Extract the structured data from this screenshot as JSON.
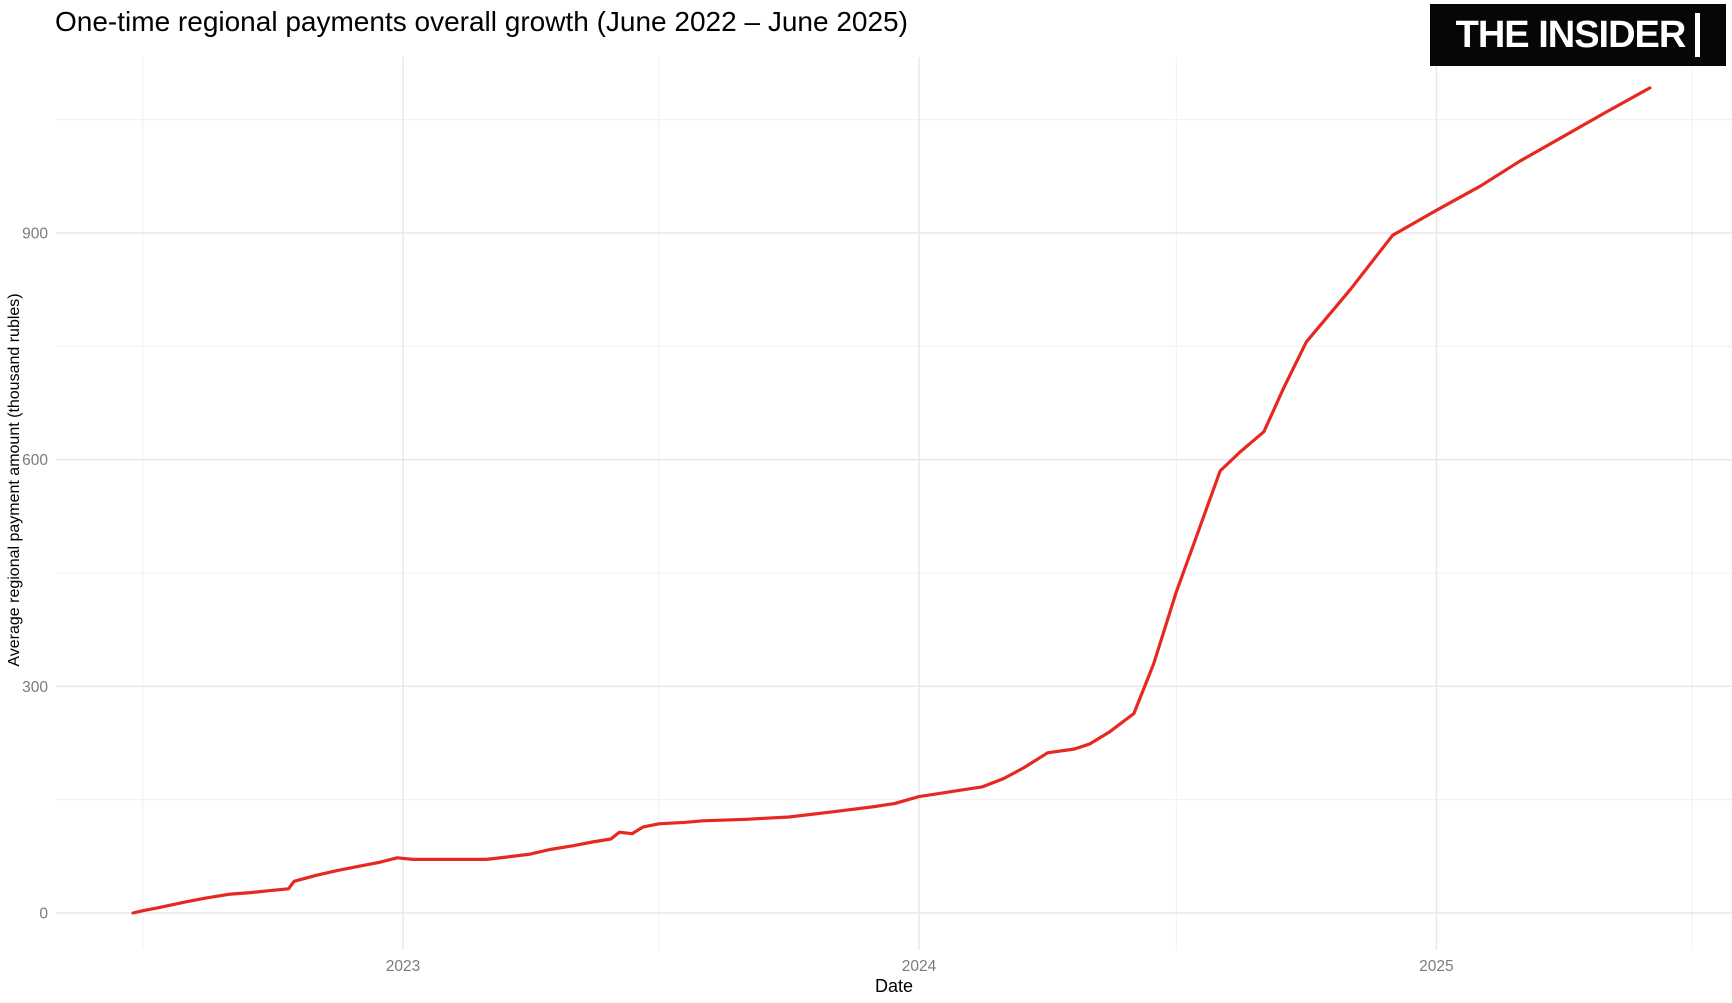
{
  "logo": {
    "text": "THE INSIDER"
  },
  "chart_data": {
    "type": "line",
    "title": "One-time regional payments overall growth (June 2022 – June 2025)",
    "xlabel": "Date",
    "ylabel": "Average regional payment amount (thousand rubles)",
    "x_tick_labels": [
      "2023",
      "2024",
      "2025"
    ],
    "x_major_dates": [
      "2023-01-01",
      "2024-01-01",
      "2025-01-01"
    ],
    "x_minor_dates": [
      "2022-07-01",
      "2023-07-01",
      "2024-07-01",
      "2025-07-01"
    ],
    "y_tick_labels": [
      "0",
      "300",
      "600",
      "900"
    ],
    "y_major": [
      0,
      300,
      600,
      900
    ],
    "y_minor": [
      150,
      450,
      750,
      1050
    ],
    "x_range": [
      "2022-06-24",
      "2025-06-01"
    ],
    "ylim": [
      0,
      1100
    ],
    "grid": "on",
    "legend": "none",
    "line_color": "#e62820",
    "tick_label_color": "#7b7b7b",
    "series": [
      {
        "points": [
          [
            "2022-06-24",
            0
          ],
          [
            "2022-07-01",
            3
          ],
          [
            "2022-07-12",
            7
          ],
          [
            "2022-07-22",
            11
          ],
          [
            "2022-08-01",
            15
          ],
          [
            "2022-08-15",
            20
          ],
          [
            "2022-09-01",
            25
          ],
          [
            "2022-09-15",
            27
          ],
          [
            "2022-10-01",
            30
          ],
          [
            "2022-10-12",
            32
          ],
          [
            "2022-10-16",
            42
          ],
          [
            "2022-11-01",
            50
          ],
          [
            "2022-11-15",
            56
          ],
          [
            "2022-12-01",
            62
          ],
          [
            "2022-12-15",
            67
          ],
          [
            "2022-12-28",
            73
          ],
          [
            "2023-01-08",
            71
          ],
          [
            "2023-02-01",
            71
          ],
          [
            "2023-03-01",
            71
          ],
          [
            "2023-03-15",
            74
          ],
          [
            "2023-04-01",
            78
          ],
          [
            "2023-04-15",
            84
          ],
          [
            "2023-05-01",
            89
          ],
          [
            "2023-05-15",
            94
          ],
          [
            "2023-05-28",
            98
          ],
          [
            "2023-06-03",
            107
          ],
          [
            "2023-06-12",
            105
          ],
          [
            "2023-06-20",
            114
          ],
          [
            "2023-07-01",
            118
          ],
          [
            "2023-07-20",
            120
          ],
          [
            "2023-08-01",
            122
          ],
          [
            "2023-09-01",
            124
          ],
          [
            "2023-10-01",
            127
          ],
          [
            "2023-11-01",
            134
          ],
          [
            "2023-12-01",
            141
          ],
          [
            "2023-12-15",
            145
          ],
          [
            "2024-01-01",
            154
          ],
          [
            "2024-01-15",
            158
          ],
          [
            "2024-02-01",
            163
          ],
          [
            "2024-02-15",
            167
          ],
          [
            "2024-03-01",
            178
          ],
          [
            "2024-03-15",
            192
          ],
          [
            "2024-04-01",
            212
          ],
          [
            "2024-04-20",
            217
          ],
          [
            "2024-05-01",
            224
          ],
          [
            "2024-05-15",
            240
          ],
          [
            "2024-06-01",
            264
          ],
          [
            "2024-06-15",
            330
          ],
          [
            "2024-07-01",
            425
          ],
          [
            "2024-07-15",
            497
          ],
          [
            "2024-08-01",
            585
          ],
          [
            "2024-08-15",
            610
          ],
          [
            "2024-09-01",
            637
          ],
          [
            "2024-09-15",
            695
          ],
          [
            "2024-10-01",
            756
          ],
          [
            "2024-11-01",
            825
          ],
          [
            "2024-12-01",
            897
          ],
          [
            "2025-01-01",
            930
          ],
          [
            "2025-02-01",
            962
          ],
          [
            "2025-03-01",
            995
          ],
          [
            "2025-04-01",
            1028
          ],
          [
            "2025-05-01",
            1060
          ],
          [
            "2025-06-01",
            1092
          ]
        ]
      }
    ]
  }
}
